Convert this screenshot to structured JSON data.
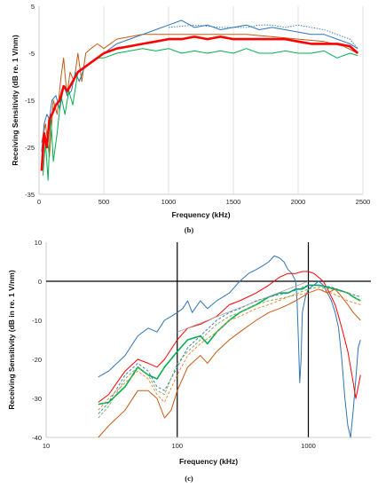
{
  "chart_data": [
    {
      "type": "line",
      "panel_label": "(b)",
      "title": "",
      "xlabel": "Frequency  (kHz)",
      "ylabel": "Receiving Sensitivity  (dB re. 1 V/nm)",
      "xlim": [
        0,
        2500
      ],
      "ylim": [
        -35,
        5
      ],
      "xticks": [
        0,
        500,
        1000,
        1500,
        2000,
        2500
      ],
      "yticks": [
        5,
        -5,
        -15,
        -25,
        -35
      ],
      "grid": "x-only",
      "legend": "none",
      "series": [
        {
          "color": "#c55a11",
          "width": 1.0,
          "dash": "",
          "x": [
            20,
            50,
            80,
            110,
            140,
            170,
            190,
            215,
            240,
            270,
            300,
            330,
            360,
            400,
            450,
            500,
            600,
            700,
            800,
            1000,
            1200,
            1400,
            1600,
            1800,
            2000,
            2200,
            2350,
            2460
          ],
          "y": [
            -24,
            -20,
            -27,
            -15,
            -18,
            -10,
            -6,
            -14,
            -9,
            -11,
            -5,
            -11,
            -5,
            -4,
            -3,
            -4,
            -2,
            -1.5,
            -1,
            -1,
            -1,
            -1,
            -1,
            -1.5,
            -2,
            -2.5,
            -3.5,
            -5
          ]
        },
        {
          "color": "#2e75b6",
          "width": 1.0,
          "dash": "",
          "x": [
            20,
            40,
            60,
            80,
            100,
            130,
            160,
            190,
            220,
            250,
            280,
            310,
            350,
            400,
            450,
            500,
            600,
            700,
            800,
            900,
            1000,
            1100,
            1200,
            1300,
            1400,
            1500,
            1600,
            1700,
            1800,
            1900,
            2000,
            2100,
            2200,
            2300,
            2400,
            2460
          ],
          "y": [
            -26,
            -20,
            -18,
            -19,
            -15,
            -14,
            -17,
            -12,
            -14,
            -13,
            -9,
            -11,
            -8,
            -7,
            -6,
            -5,
            -3,
            -2,
            -1,
            0,
            1,
            2,
            0.5,
            1,
            0,
            0.5,
            1,
            0,
            0.5,
            0,
            -0.5,
            -1,
            -1,
            -2,
            -3,
            -4
          ]
        },
        {
          "color": "#2e75b6",
          "width": 0.9,
          "dash": "1.5,1.5",
          "x": [
            1000,
            1200,
            1400,
            1600,
            1700,
            1800,
            1900,
            2000,
            2100,
            2200,
            2300,
            2400,
            2460
          ],
          "y": [
            0.5,
            1,
            0.5,
            0.5,
            1,
            1,
            0.5,
            1,
            0.5,
            0,
            -1,
            -2,
            -4
          ]
        },
        {
          "color": "#00b050",
          "width": 1.0,
          "dash": "",
          "x": [
            30,
            50,
            70,
            90,
            110,
            140,
            170,
            200,
            230,
            260,
            300,
            350,
            400,
            450,
            500,
            600,
            700,
            800,
            900,
            1000,
            1100,
            1200,
            1300,
            1400,
            1500,
            1600,
            1700,
            1800,
            1900,
            2000,
            2100,
            2200,
            2300,
            2400,
            2460
          ],
          "y": [
            -31,
            -24,
            -32,
            -18,
            -28,
            -22,
            -14,
            -18,
            -13,
            -16,
            -9,
            -8,
            -7,
            -6,
            -6,
            -5,
            -4.5,
            -4,
            -4.5,
            -4,
            -5,
            -4.5,
            -5,
            -4.5,
            -5,
            -4,
            -5,
            -5,
            -4.5,
            -5,
            -5,
            -4.5,
            -6,
            -5,
            -5.5
          ]
        },
        {
          "color": "#ff0000",
          "width": 2.6,
          "dash": "",
          "x": [
            20,
            40,
            60,
            80,
            100,
            130,
            160,
            190,
            220,
            260,
            300,
            350,
            400,
            450,
            500,
            600,
            700,
            800,
            900,
            1000,
            1100,
            1200,
            1300,
            1400,
            1500,
            1600,
            1700,
            1800,
            1900,
            2000,
            2100,
            2200,
            2300,
            2400,
            2460
          ],
          "y": [
            -30,
            -22,
            -25,
            -19,
            -18,
            -16,
            -15,
            -12,
            -13,
            -11,
            -9,
            -8,
            -7,
            -6,
            -5,
            -4,
            -3.5,
            -3,
            -2.5,
            -2,
            -2,
            -1.5,
            -2,
            -1.5,
            -2,
            -2,
            -2,
            -2,
            -2,
            -2.5,
            -3,
            -3,
            -3,
            -3.5,
            -5
          ]
        }
      ]
    },
    {
      "type": "line",
      "panel_label": "(c)",
      "title": "",
      "xlabel": "Frequency  (kHz)",
      "ylabel": "Receiving Sensitivity  (dB in re. 1 V/nm)",
      "xscale": "log",
      "xlim": [
        10,
        3000
      ],
      "ylim": [
        -40,
        10
      ],
      "xticks": [
        10,
        100,
        1000
      ],
      "yticks": [
        10,
        0,
        -10,
        -20,
        -30,
        -40
      ],
      "vertical_lines_at": [
        100,
        1000
      ],
      "zero_line": true,
      "legend": "none",
      "series": [
        {
          "color": "#2e75b6",
          "width": 1.0,
          "dash": "",
          "x": [
            25,
            30,
            40,
            50,
            60,
            70,
            80,
            90,
            100,
            110,
            120,
            130,
            150,
            170,
            200,
            250,
            300,
            350,
            400,
            450,
            500,
            550,
            600,
            650,
            700,
            750,
            800,
            820,
            840,
            860,
            880,
            900,
            950,
            1000,
            1100,
            1200,
            1300,
            1400,
            1500,
            1600,
            1700,
            1800,
            1900,
            2000,
            2100,
            2200,
            2300,
            2400,
            2500
          ],
          "y": [
            -24.5,
            -23,
            -19,
            -14,
            -12,
            -13,
            -10,
            -9,
            -8,
            -7,
            -5,
            -8,
            -5,
            -7,
            -5,
            -3,
            0,
            2,
            3,
            4,
            5,
            6.5,
            6,
            5,
            3,
            2,
            0,
            -5,
            -15,
            -26,
            -20,
            -8,
            -4,
            -2,
            -1,
            0,
            -1,
            -3,
            -5,
            -8,
            -12,
            -20,
            -30,
            -37,
            -40,
            -33,
            -25,
            -17,
            -15
          ]
        },
        {
          "color": "#ff0000",
          "width": 1.0,
          "dash": "",
          "x": [
            25,
            30,
            40,
            50,
            60,
            70,
            80,
            100,
            120,
            150,
            200,
            250,
            300,
            400,
            500,
            600,
            700,
            800,
            900,
            1000,
            1100,
            1200,
            1300,
            1400,
            1500,
            1600,
            1700,
            1800,
            1900,
            2000,
            2100,
            2200,
            2300,
            2400,
            2500
          ],
          "y": [
            -31,
            -29,
            -23,
            -20,
            -21,
            -22,
            -20,
            -15,
            -12,
            -11,
            -9,
            -6,
            -5,
            -3,
            -1,
            1,
            2,
            2,
            2.5,
            2.5,
            2,
            1,
            0,
            -2,
            -4,
            -6,
            -9,
            -12,
            -15,
            -18,
            -22,
            -26,
            -30,
            -27,
            -24
          ]
        },
        {
          "color": "#00b050",
          "width": 1.6,
          "dash": "",
          "x": [
            25,
            30,
            40,
            50,
            60,
            70,
            80,
            100,
            120,
            150,
            170,
            200,
            250,
            300,
            400,
            500,
            600,
            700,
            800,
            900,
            1000,
            1200,
            1400,
            1600,
            1800,
            2000,
            2200,
            2500
          ],
          "y": [
            -31.5,
            -31,
            -27,
            -22,
            -24,
            -25,
            -22,
            -18,
            -15,
            -14,
            -16,
            -13,
            -10,
            -8,
            -6,
            -4,
            -3,
            -3,
            -2,
            -2,
            -1,
            -1,
            -1.5,
            -2,
            -2.5,
            -3,
            -4,
            -5
          ]
        },
        {
          "color": "#c55a11",
          "width": 1.0,
          "dash": "",
          "x": [
            25,
            30,
            40,
            50,
            60,
            70,
            80,
            90,
            100,
            120,
            150,
            170,
            200,
            250,
            300,
            400,
            500,
            600,
            700,
            800,
            900,
            1000,
            1200,
            1400,
            1600,
            1800,
            2000,
            2200,
            2500
          ],
          "y": [
            -40,
            -37,
            -33,
            -28,
            -28,
            -30,
            -35,
            -33,
            -28,
            -22,
            -19,
            -21,
            -18,
            -15,
            -13,
            -10,
            -8,
            -7,
            -6,
            -5,
            -4,
            -3,
            -2,
            -3,
            -2,
            -4,
            -6,
            -8,
            -10
          ]
        },
        {
          "color": "#2e75b6",
          "width": 0.9,
          "dash": "3,2",
          "x": [
            25,
            30,
            40,
            50,
            60,
            70,
            80,
            100,
            120,
            150,
            200,
            250,
            300,
            400,
            500,
            700,
            1000,
            1200,
            1500,
            2000,
            2500
          ],
          "y": [
            -34,
            -31,
            -24,
            -21,
            -23,
            -27,
            -28,
            -22,
            -17,
            -14,
            -10,
            -8,
            -7,
            -5,
            -4,
            -3,
            -1,
            -1,
            -1.5,
            -3,
            -4
          ]
        },
        {
          "color": "#70ad47",
          "width": 0.9,
          "dash": "3,2",
          "x": [
            25,
            30,
            40,
            50,
            60,
            70,
            80,
            100,
            120,
            150,
            200,
            250,
            300,
            400,
            500,
            700,
            1000,
            1200,
            1500,
            2000,
            2500
          ],
          "y": [
            -35,
            -32,
            -25,
            -22,
            -24,
            -28,
            -29,
            -21,
            -18,
            -15,
            -11,
            -9,
            -8,
            -6,
            -5,
            -4,
            -2,
            -1.5,
            -2,
            -3,
            -5
          ]
        },
        {
          "color": "#ed7d31",
          "width": 0.9,
          "dash": "3,2",
          "x": [
            25,
            30,
            40,
            50,
            60,
            70,
            80,
            100,
            120,
            150,
            200,
            250,
            300,
            400,
            500,
            700,
            1000,
            1200,
            1500,
            2000,
            2500
          ],
          "y": [
            -33,
            -30,
            -26,
            -23,
            -25,
            -29,
            -31,
            -24,
            -19,
            -16,
            -13,
            -10,
            -9,
            -7,
            -6,
            -4,
            -3,
            -2,
            -3,
            -5,
            -6
          ]
        },
        {
          "color": "#a5a5a5",
          "width": 0.8,
          "dash": "",
          "x": [
            100,
            1000
          ],
          "y": [
            -13,
            0
          ]
        }
      ]
    }
  ]
}
